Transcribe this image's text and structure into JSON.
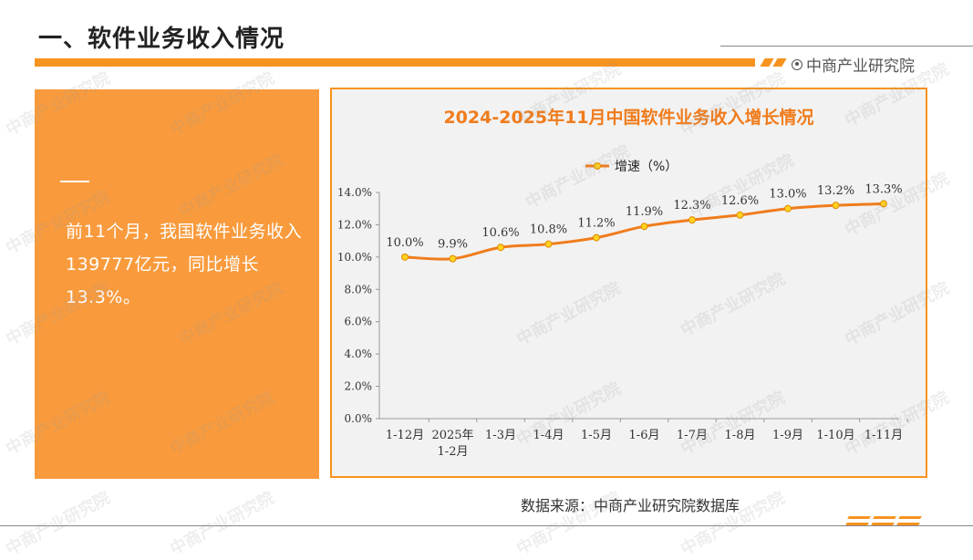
{
  "page": {
    "title": "一、软件业务收入情况",
    "brand": "中商产业研究院",
    "summary": "前11个月，我国软件业务收入139777亿元，同比增长13.3%。",
    "source": "数据来源：中商产业研究院数据库",
    "watermark": "中商产业研究院"
  },
  "colors": {
    "accent": "#f7931e",
    "panel": "#f99b3d",
    "line": "#f07c1c",
    "marker": "#ffd21f"
  },
  "chart_data": {
    "type": "line",
    "title": "2024-2025年11月中国软件业务收入增长情况",
    "xlabel": "",
    "ylabel": "",
    "categories": [
      "1-12月",
      "2025年\n1-2月",
      "1-3月",
      "1-4月",
      "1-5月",
      "1-6月",
      "1-7月",
      "1-8月",
      "1-9月",
      "1-10月",
      "1-11月"
    ],
    "series": [
      {
        "name": "增速（%）",
        "values": [
          10.0,
          9.9,
          10.6,
          10.8,
          11.2,
          11.9,
          12.3,
          12.6,
          13.0,
          13.2,
          13.3
        ]
      }
    ],
    "data_labels": [
      "10.0%",
      "9.9%",
      "10.6%",
      "10.8%",
      "11.2%",
      "11.9%",
      "12.3%",
      "12.6%",
      "13.0%",
      "13.2%",
      "13.3%"
    ],
    "yticks": [
      "0.0%",
      "2.0%",
      "4.0%",
      "6.0%",
      "8.0%",
      "10.0%",
      "12.0%",
      "14.0%"
    ],
    "ylim": [
      0,
      14
    ],
    "grid": false,
    "legend": "top"
  }
}
